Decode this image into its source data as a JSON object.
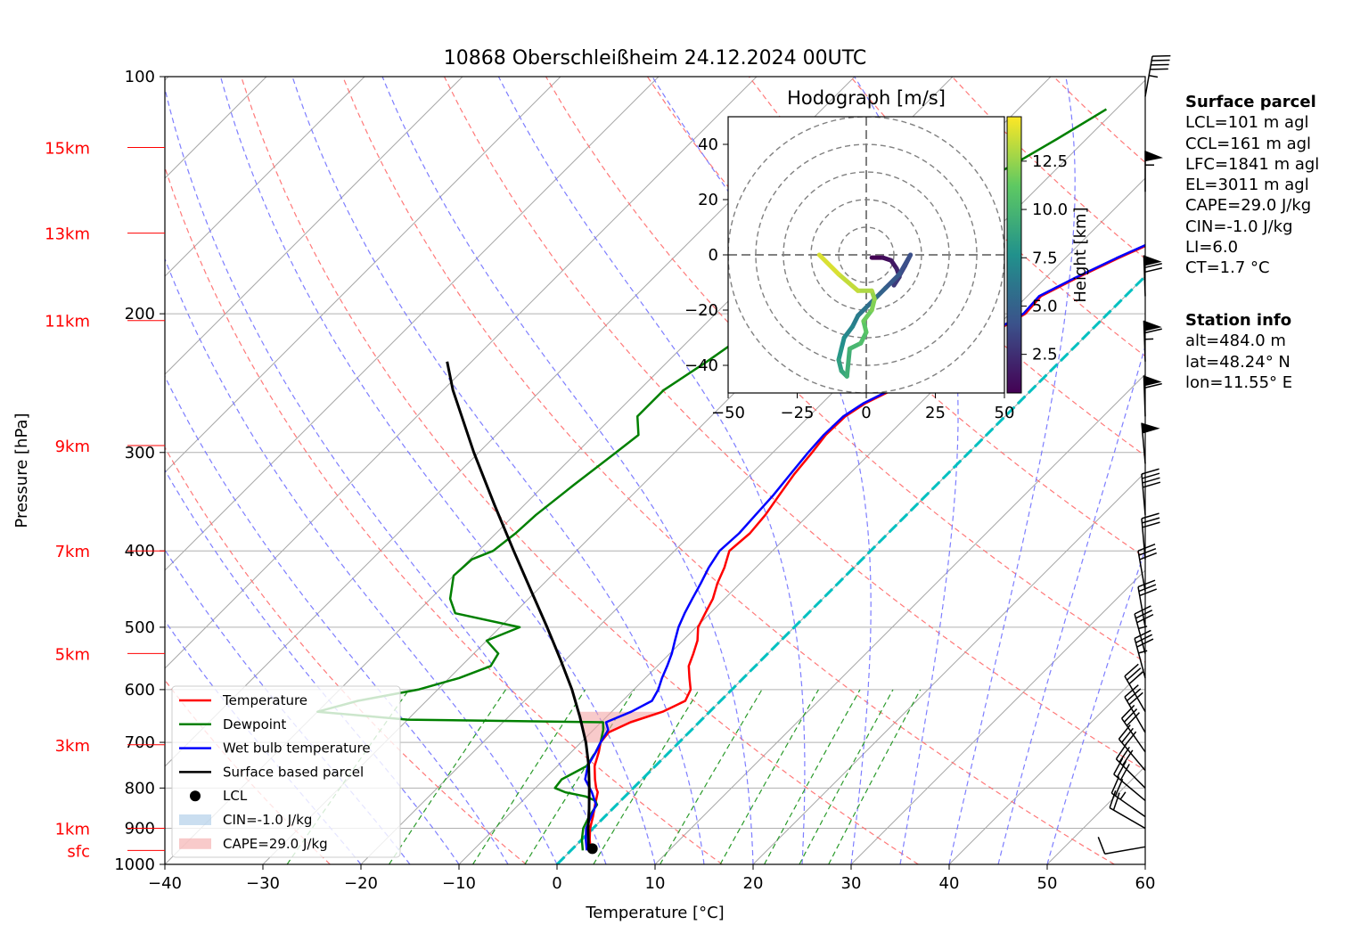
{
  "chart_data": [
    {
      "type": "line",
      "title": "10868 Oberschleißheim 24.12.2024 00UTC",
      "xlabel": "Temperature [°C]",
      "ylabel": "Pressure [hPa]",
      "xlim": [
        -40,
        60
      ],
      "ylim": [
        1000,
        100
      ],
      "y_scale": "log",
      "x_ticks": [
        "−40",
        "−30",
        "−20",
        "−10",
        "0",
        "10",
        "20",
        "30",
        "40",
        "50",
        "60"
      ],
      "y_ticks": [
        "100",
        "200",
        "300",
        "400",
        "500",
        "600",
        "700",
        "800",
        "900",
        "1000"
      ],
      "height_labels": [
        "15km",
        "13km",
        "11km",
        "9km",
        "7km",
        "5km",
        "3km",
        "1km",
        "sfc"
      ],
      "height_label_pressures": [
        123,
        158,
        204,
        294,
        400,
        540,
        705,
        900,
        960
      ],
      "legend_position": "lower-left",
      "legend": [
        "Temperature",
        "Dewpoint",
        "Wet bulb temperature",
        "Surface based parcel",
        "LCL",
        "CIN=-1.0 J/kg",
        "CAPE=29.0 J/kg"
      ],
      "series": [
        {
          "name": "Temperature",
          "color": "#ff0000",
          "points": [
            [
              960,
              2.0
            ],
            [
              930,
              0.8
            ],
            [
              900,
              -0.3
            ],
            [
              870,
              -1.2
            ],
            [
              840,
              -2.2
            ],
            [
              810,
              -3.2
            ],
            [
              800,
              -3.8
            ],
            [
              780,
              -4.8
            ],
            [
              750,
              -6.2
            ],
            [
              720,
              -7.2
            ],
            [
              700,
              -8.0
            ],
            [
              680,
              -8.2
            ],
            [
              660,
              -7.0
            ],
            [
              640,
              -4.8
            ],
            [
              620,
              -3.6
            ],
            [
              600,
              -4.2
            ],
            [
              580,
              -5.5
            ],
            [
              560,
              -6.8
            ],
            [
              540,
              -7.6
            ],
            [
              520,
              -8.5
            ],
            [
              500,
              -9.8
            ],
            [
              480,
              -10.5
            ],
            [
              460,
              -11.2
            ],
            [
              440,
              -12.3
            ],
            [
              420,
              -13.2
            ],
            [
              400,
              -14.4
            ],
            [
              380,
              -14.1
            ],
            [
              360,
              -14.4
            ],
            [
              340,
              -15.0
            ],
            [
              320,
              -15.6
            ],
            [
              300,
              -16.0
            ],
            [
              285,
              -16.4
            ],
            [
              270,
              -16.3
            ],
            [
              260,
              -15.6
            ],
            [
              250,
              -14.2
            ],
            [
              240,
              -13.0
            ],
            [
              230,
              -11.8
            ],
            [
              220,
              -10.6
            ],
            [
              210,
              -9.6
            ],
            [
              200,
              -8.4
            ],
            [
              190,
              -8.6
            ],
            [
              180,
              -6.8
            ],
            [
              170,
              -4.6
            ],
            [
              160,
              -2.0
            ],
            [
              150,
              0.2
            ],
            [
              140,
              2.0
            ],
            [
              130,
              4.0
            ],
            [
              120,
              6.0
            ],
            [
              110,
              8.0
            ],
            [
              104,
              8.4
            ]
          ]
        },
        {
          "name": "Dewpoint",
          "color": "#008000",
          "points": [
            [
              960,
              1.2
            ],
            [
              930,
              0.0
            ],
            [
              900,
              -1.0
            ],
            [
              870,
              -1.6
            ],
            [
              840,
              -2.0
            ],
            [
              830,
              -2.6
            ],
            [
              820,
              -4.0
            ],
            [
              810,
              -6.5
            ],
            [
              800,
              -8.0
            ],
            [
              780,
              -8.2
            ],
            [
              750,
              -7.0
            ],
            [
              720,
              -7.5
            ],
            [
              700,
              -8.0
            ],
            [
              675,
              -9.0
            ],
            [
              660,
              -9.8
            ],
            [
              655,
              -30.0
            ],
            [
              640,
              -40.0
            ],
            [
              620,
              -37.0
            ],
            [
              600,
              -32.0
            ],
            [
              580,
              -29.0
            ],
            [
              560,
              -27.0
            ],
            [
              540,
              -27.5
            ],
            [
              520,
              -30.0
            ],
            [
              500,
              -28.0
            ],
            [
              480,
              -36.0
            ],
            [
              460,
              -38.0
            ],
            [
              430,
              -40.0
            ],
            [
              410,
              -39.8
            ],
            [
              400,
              -38.5
            ],
            [
              380,
              -38.0
            ],
            [
              360,
              -37.8
            ],
            [
              330,
              -37.0
            ],
            [
              300,
              -36.0
            ],
            [
              285,
              -35.5
            ],
            [
              270,
              -37.5
            ],
            [
              250,
              -37.5
            ],
            [
              230,
              -36.0
            ],
            [
              215,
              -35.0
            ],
            [
              200,
              -34.0
            ],
            [
              180,
              -32.5
            ],
            [
              165,
              -30.5
            ],
            [
              150,
              -28.5
            ],
            [
              140,
              -27.0
            ],
            [
              130,
              -25.0
            ],
            [
              120,
              -23.0
            ],
            [
              110,
              -21.0
            ]
          ]
        },
        {
          "name": "Wet bulb temperature",
          "color": "#0000ff",
          "points": [
            [
              960,
              1.6
            ],
            [
              930,
              0.4
            ],
            [
              900,
              -0.7
            ],
            [
              870,
              -1.4
            ],
            [
              840,
              -2.1
            ],
            [
              810,
              -3.8
            ],
            [
              780,
              -5.8
            ],
            [
              750,
              -6.9
            ],
            [
              720,
              -7.5
            ],
            [
              700,
              -8.0
            ],
            [
              675,
              -8.5
            ],
            [
              660,
              -9.5
            ],
            [
              640,
              -8.0
            ],
            [
              620,
              -7.0
            ],
            [
              600,
              -7.5
            ],
            [
              580,
              -8.3
            ],
            [
              560,
              -9.0
            ],
            [
              540,
              -9.8
            ],
            [
              520,
              -10.8
            ],
            [
              500,
              -11.8
            ],
            [
              480,
              -12.6
            ],
            [
              460,
              -13.3
            ],
            [
              440,
              -14.0
            ],
            [
              420,
              -14.8
            ],
            [
              400,
              -15.4
            ],
            [
              380,
              -15.2
            ],
            [
              360,
              -15.4
            ],
            [
              340,
              -15.6
            ],
            [
              320,
              -16.0
            ],
            [
              300,
              -16.4
            ],
            [
              285,
              -16.6
            ],
            [
              270,
              -16.5
            ],
            [
              260,
              -15.8
            ],
            [
              250,
              -14.4
            ],
            [
              240,
              -13.2
            ],
            [
              230,
              -12.0
            ],
            [
              220,
              -10.8
            ],
            [
              210,
              -9.8
            ],
            [
              200,
              -8.6
            ],
            [
              190,
              -8.8
            ],
            [
              180,
              -7.0
            ],
            [
              170,
              -4.8
            ],
            [
              160,
              -2.2
            ],
            [
              150,
              0.0
            ],
            [
              140,
              1.8
            ],
            [
              130,
              3.8
            ],
            [
              120,
              5.8
            ],
            [
              110,
              7.8
            ],
            [
              104,
              8.1
            ]
          ]
        },
        {
          "name": "Surface based parcel",
          "color": "#000000",
          "points": [
            [
              960,
              1.8
            ],
            [
              900,
              -0.5
            ],
            [
              850,
              -2.4
            ],
            [
              800,
              -4.5
            ],
            [
              750,
              -6.8
            ],
            [
              700,
              -9.5
            ],
            [
              650,
              -12.7
            ],
            [
              600,
              -16.3
            ],
            [
              550,
              -20.5
            ],
            [
              500,
              -25.2
            ],
            [
              450,
              -30.5
            ],
            [
              400,
              -36.4
            ],
            [
              350,
              -43.0
            ],
            [
              300,
              -50.5
            ],
            [
              250,
              -59.0
            ],
            [
              230,
              -62.5
            ]
          ]
        }
      ],
      "lcl": {
        "name": "LCL",
        "pressure": 955,
        "temperature": 2.0
      },
      "cape_fill": {
        "name": "CAPE=29.0 J/kg",
        "color": "#f4a6a6"
      },
      "cin_fill": {
        "name": "CIN=-1.0 J/kg",
        "color": "#a6c8e6"
      },
      "freezing_level_line": {
        "color": "#00c0c0",
        "temperature": 0.0
      },
      "dry_adiabat_color": "#ff6a6a",
      "moist_adiabat_color": "#7070ff",
      "mixing_ratio_color": "#2a9a2a",
      "wind_barbs": [
        {
          "p": 950,
          "speed_kt": 10,
          "dir": 260
        },
        {
          "p": 900,
          "speed_kt": 20,
          "dir": 300
        },
        {
          "p": 870,
          "speed_kt": 25,
          "dir": 305
        },
        {
          "p": 830,
          "speed_kt": 30,
          "dir": 310
        },
        {
          "p": 800,
          "speed_kt": 30,
          "dir": 315
        },
        {
          "p": 760,
          "speed_kt": 30,
          "dir": 320
        },
        {
          "p": 720,
          "speed_kt": 30,
          "dir": 325
        },
        {
          "p": 680,
          "speed_kt": 30,
          "dir": 330
        },
        {
          "p": 640,
          "speed_kt": 30,
          "dir": 330
        },
        {
          "p": 580,
          "speed_kt": 35,
          "dir": 345
        },
        {
          "p": 540,
          "speed_kt": 35,
          "dir": 345
        },
        {
          "p": 500,
          "speed_kt": 30,
          "dir": 350
        },
        {
          "p": 450,
          "speed_kt": 30,
          "dir": 350
        },
        {
          "p": 410,
          "speed_kt": 30,
          "dir": 355
        },
        {
          "p": 360,
          "speed_kt": 40,
          "dir": 355
        },
        {
          "p": 310,
          "speed_kt": 50,
          "dir": 355
        },
        {
          "p": 270,
          "speed_kt": 60,
          "dir": 358
        },
        {
          "p": 230,
          "speed_kt": 65,
          "dir": 358
        },
        {
          "p": 190,
          "speed_kt": 70,
          "dir": 358
        },
        {
          "p": 140,
          "speed_kt": 55,
          "dir": 0
        },
        {
          "p": 106,
          "speed_kt": 45,
          "dir": 10
        }
      ]
    },
    {
      "type": "scatter",
      "title": "Hodograph [m/s]",
      "xlim": [
        -50,
        50
      ],
      "ylim": [
        -50,
        50
      ],
      "x_ticks": [
        "−50",
        "−25",
        "0",
        "25",
        "50"
      ],
      "y_ticks": [
        "40",
        "20",
        "0",
        "−20",
        "−40"
      ],
      "colorbar_label": "Height [km]",
      "colorbar_ticks": [
        "2.5",
        "5.0",
        "7.5",
        "10.0",
        "12.5"
      ],
      "colorbar_range": [
        0.5,
        14.8
      ],
      "rings": [
        10,
        20,
        30,
        40,
        50
      ],
      "points": [
        [
          2,
          -1,
          0.5
        ],
        [
          6,
          -1,
          1.0
        ],
        [
          9,
          -2,
          1.5
        ],
        [
          11,
          -5,
          2.0
        ],
        [
          12,
          -8,
          2.5
        ],
        [
          10,
          -11,
          3.0
        ],
        [
          14,
          -4,
          3.5
        ],
        [
          16,
          0,
          4.0
        ],
        [
          12,
          -7,
          4.5
        ],
        [
          7,
          -12,
          5.0
        ],
        [
          4,
          -15,
          5.5
        ],
        [
          0,
          -19,
          6.0
        ],
        [
          -3,
          -22,
          6.5
        ],
        [
          -5,
          -26,
          7.0
        ],
        [
          -8,
          -30,
          7.5
        ],
        [
          -9,
          -34,
          8.0
        ],
        [
          -10,
          -38,
          8.5
        ],
        [
          -9,
          -42,
          9.0
        ],
        [
          -7,
          -44,
          9.5
        ],
        [
          -6,
          -34,
          10.0
        ],
        [
          -2,
          -32,
          10.5
        ],
        [
          0,
          -28,
          11.0
        ],
        [
          -1,
          -24,
          11.5
        ],
        [
          2,
          -20,
          12.0
        ],
        [
          3,
          -16,
          12.5
        ],
        [
          2,
          -13,
          13.0
        ],
        [
          -3,
          -13,
          13.5
        ],
        [
          -10,
          -7,
          14.0
        ],
        [
          -17,
          0,
          14.5
        ]
      ]
    }
  ],
  "surface_parcel": {
    "heading": "Surface parcel",
    "lines": [
      "LCL=101 m agl",
      "CCL=161 m agl",
      "LFC=1841 m agl",
      "EL=3011 m agl",
      "CAPE=29.0 J/kg",
      "CIN=-1.0 J/kg",
      "LI=6.0",
      "CT=1.7 °C"
    ]
  },
  "station_info": {
    "heading": "Station info",
    "lines": [
      "alt=484.0 m",
      "lat=48.24° N",
      "lon=11.55° E"
    ]
  }
}
